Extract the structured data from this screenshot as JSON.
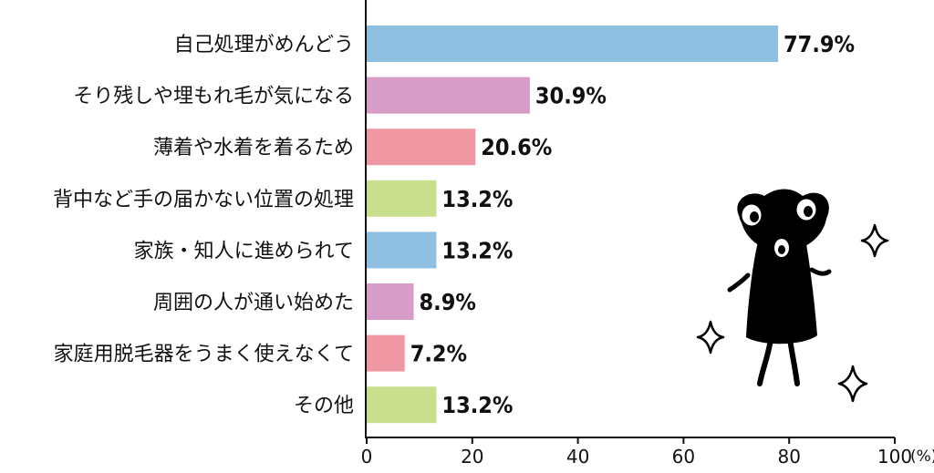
{
  "chart_data": {
    "type": "bar",
    "orientation": "horizontal",
    "categories": [
      "自己処理がめんどう",
      "そり残しや埋もれ毛が気になる",
      "薄着や水着を着るため",
      "背中など手の届かない位置の処理",
      "家族・知人に進められて",
      "周囲の人が通い始めた",
      "家庭用脱毛器をうまく使えなくて",
      "その他"
    ],
    "values": [
      77.9,
      30.9,
      20.6,
      13.2,
      13.2,
      8.9,
      7.2,
      13.2
    ],
    "value_labels": [
      "77.9%",
      "30.9%",
      "20.6%",
      "13.2%",
      "13.2%",
      "8.9%",
      "7.2%",
      "13.2%"
    ],
    "bar_colors": [
      "#8fbfe0",
      "#d89cc9",
      "#ef97a2",
      "#c9df8e",
      "#8fbfe0",
      "#d89cc9",
      "#ef97a2",
      "#c9df8e"
    ],
    "xlim": [
      0,
      100
    ],
    "x_ticks": [
      0,
      20,
      40,
      60,
      80,
      100
    ],
    "x_tick_labels": [
      "0",
      "20",
      "40",
      "60",
      "80",
      "100"
    ],
    "x_unit": "(%)",
    "title": "",
    "xlabel": "",
    "ylabel": "",
    "grid": false,
    "legend": "none"
  },
  "decoration": {
    "mascot": "black-frog-character-icon",
    "sparkles": "sparkle-icon"
  }
}
